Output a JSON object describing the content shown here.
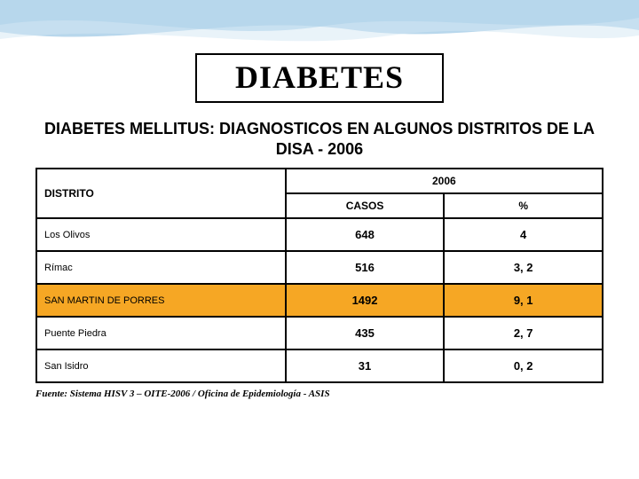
{
  "decor": {
    "wave_colors": [
      "#b6d6ec",
      "#7db6dc",
      "#d4e7f3"
    ]
  },
  "title": "DIABETES",
  "subtitle": "DIABETES MELLITUS: DIAGNOSTICOS EN ALGUNOS DISTRITOS DE LA DISA - 2006",
  "table": {
    "header_district": "DISTRITO",
    "header_year": "2006",
    "header_cases": "CASOS",
    "header_percent": "%",
    "highlight_color": "#f6a724",
    "rows": [
      {
        "district": "Los Olivos",
        "cases": "648",
        "percent": "4",
        "highlight": false
      },
      {
        "district": "Rímac",
        "cases": "516",
        "percent": "3, 2",
        "highlight": false
      },
      {
        "district": "SAN MARTIN DE PORRES",
        "cases": "1492",
        "percent": "9, 1",
        "highlight": true
      },
      {
        "district": "Puente Piedra",
        "cases": "435",
        "percent": "2, 7",
        "highlight": false
      },
      {
        "district": "San Isidro",
        "cases": "31",
        "percent": "0, 2",
        "highlight": false
      }
    ]
  },
  "source": "Fuente: Sistema HISV 3 – OITE-2006 / Oficina de Epidemiología - ASIS"
}
